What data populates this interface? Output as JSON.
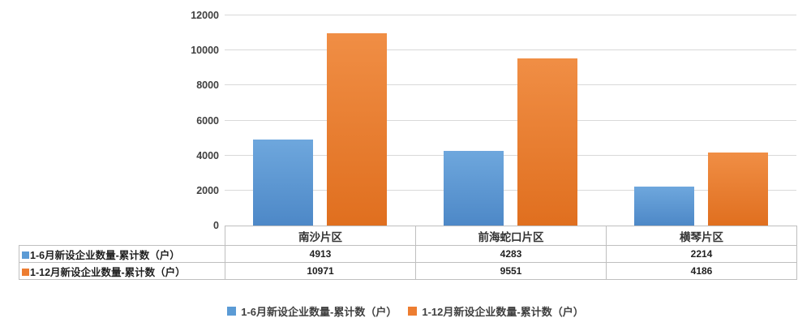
{
  "chart_data": {
    "type": "bar",
    "title": "",
    "xlabel": "",
    "ylabel": "",
    "categories": [
      "南沙片区",
      "前海蛇口片区",
      "横琴片区"
    ],
    "series": [
      {
        "name": "1-6月新设企业数量-累计数（户）",
        "color": "#5B9BD5",
        "color_light": "#6EA7DD",
        "color_dark": "#4D88C7",
        "values": [
          4913,
          4283,
          2214
        ]
      },
      {
        "name": "1-12月新设企业数量-累计数（户）",
        "color": "#ED7D31",
        "color_light": "#F08E45",
        "color_dark": "#E06F1F",
        "values": [
          10971,
          9551,
          4186
        ]
      }
    ],
    "ylim": [
      0,
      12000
    ],
    "yticks": [
      0,
      2000,
      4000,
      6000,
      8000,
      10000,
      12000
    ],
    "grid": true,
    "legend_position": "bottom"
  },
  "colors": {
    "gridline": "#D9D9D9",
    "zero_line": "#BFBFBF",
    "table_border": "#BFBFBF",
    "axis_label": "#404040",
    "table_text": "#1f1f1f"
  }
}
